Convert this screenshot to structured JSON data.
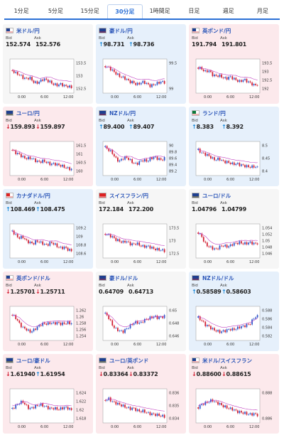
{
  "tabs": [
    {
      "label": "1分足",
      "active": false
    },
    {
      "label": "5分足",
      "active": false
    },
    {
      "label": "15分足",
      "active": false
    },
    {
      "label": "30分足",
      "active": true
    },
    {
      "label": "1時間足",
      "active": false
    },
    {
      "label": "日足",
      "active": false
    },
    {
      "label": "週足",
      "active": false
    },
    {
      "label": "月足",
      "active": false
    }
  ],
  "colors": {
    "up_bg": "#e6f0fb",
    "down_bg": "#fce9ec",
    "bull": "#2c53c9",
    "bear": "#d21c2f",
    "ma": "#c040c0"
  },
  "labels": {
    "bid": "Bid",
    "ask": "Ask"
  },
  "cards": [
    {
      "pair": "米ドル/円",
      "flag": "us",
      "trend": "flat",
      "bid": "152.574",
      "ask": "152.576",
      "y_ticks": [
        "153.5",
        "153",
        "152.5"
      ],
      "x_ticks": [
        "0:00",
        "6:00",
        "12:00"
      ],
      "shape": [
        0.3,
        0.4,
        0.45,
        0.55,
        0.6,
        0.55,
        0.7,
        0.75,
        0.68,
        0.6,
        0.65,
        0.72,
        0.8,
        0.82,
        0.78,
        0.85,
        0.86,
        0.9
      ]
    },
    {
      "pair": "豪ドル/円",
      "flag": "au",
      "trend": "up",
      "bid": "98.731",
      "ask": "98.736",
      "bid_dir": "up",
      "ask_dir": "up",
      "y_ticks": [
        "99.5",
        "99"
      ],
      "x_ticks": [
        "0:00",
        "6:00",
        "12:00"
      ],
      "shape": [
        0.15,
        0.2,
        0.3,
        0.4,
        0.5,
        0.55,
        0.6,
        0.7,
        0.72,
        0.8,
        0.75,
        0.7,
        0.78,
        0.85,
        0.8,
        0.75,
        0.7,
        0.72
      ]
    },
    {
      "pair": "英ポンド/円",
      "flag": "uk",
      "trend": "down",
      "bid": "191.794",
      "ask": "191.801",
      "y_ticks": [
        "193.5",
        "193",
        "192.5",
        "192"
      ],
      "x_ticks": [
        "0:00",
        "6:00",
        "12:00"
      ],
      "shape": [
        0.2,
        0.25,
        0.35,
        0.3,
        0.45,
        0.5,
        0.48,
        0.55,
        0.6,
        0.52,
        0.58,
        0.65,
        0.7,
        0.62,
        0.68,
        0.75,
        0.82,
        0.8
      ]
    },
    {
      "pair": "ユーロ/円",
      "flag": "eu",
      "trend": "down",
      "bid": "159.893",
      "ask": "159.897",
      "bid_dir": "down",
      "ask_dir": "down",
      "y_ticks": [
        "161.5",
        "161",
        "160.5",
        "160"
      ],
      "x_ticks": [
        "0:00",
        "6:00",
        "12:00"
      ],
      "shape": [
        0.2,
        0.3,
        0.35,
        0.45,
        0.5,
        0.48,
        0.52,
        0.6,
        0.62,
        0.58,
        0.65,
        0.7,
        0.68,
        0.72,
        0.75,
        0.8,
        0.85,
        0.88
      ]
    },
    {
      "pair": "NZドル/円",
      "flag": "nz",
      "trend": "up",
      "bid": "89.400",
      "ask": "89.407",
      "bid_dir": "up",
      "ask_dir": "up",
      "y_ticks": [
        "90",
        "89.8",
        "89.6",
        "89.4",
        "89.2"
      ],
      "x_ticks": [
        "0:00",
        "6:00",
        "12:00"
      ],
      "shape": [
        0.1,
        0.2,
        0.3,
        0.5,
        0.6,
        0.5,
        0.45,
        0.55,
        0.65,
        0.7,
        0.6,
        0.55,
        0.6,
        0.5,
        0.45,
        0.5,
        0.55,
        0.5
      ]
    },
    {
      "pair": "ランド/円",
      "flag": "za",
      "trend": "up",
      "bid": "8.383",
      "ask": "8.392",
      "bid_dir": "up",
      "ask_dir": "up",
      "y_ticks": [
        "8.5",
        "8.45",
        "8.4"
      ],
      "x_ticks": [
        "0:00",
        "6:00",
        "12:00"
      ],
      "shape": [
        0.2,
        0.3,
        0.35,
        0.4,
        0.5,
        0.55,
        0.5,
        0.6,
        0.62,
        0.65,
        0.7,
        0.68,
        0.72,
        0.75,
        0.78,
        0.8,
        0.78,
        0.82
      ]
    },
    {
      "pair": "カナダドル/円",
      "flag": "ca",
      "trend": "up",
      "bid": "108.469",
      "ask": "108.475",
      "bid_dir": "up",
      "ask_dir": "up",
      "y_ticks": [
        "109.2",
        "109",
        "108.8",
        "108.6"
      ],
      "x_ticks": [
        "0:00",
        "6:00",
        "12:00"
      ],
      "shape": [
        0.15,
        0.3,
        0.4,
        0.35,
        0.5,
        0.55,
        0.6,
        0.5,
        0.55,
        0.6,
        0.65,
        0.55,
        0.6,
        0.7,
        0.75,
        0.72,
        0.8,
        0.85
      ]
    },
    {
      "pair": "スイスフラン/円",
      "flag": "ch",
      "trend": "flat",
      "bid": "172.184",
      "ask": "172.200",
      "y_ticks": [
        "173.5",
        "173",
        "172.5"
      ],
      "x_ticks": [
        "0:00",
        "6:00",
        "12:00"
      ],
      "shape": [
        0.25,
        0.3,
        0.35,
        0.45,
        0.5,
        0.55,
        0.5,
        0.6,
        0.62,
        0.58,
        0.66,
        0.7,
        0.68,
        0.72,
        0.78,
        0.8,
        0.82,
        0.85
      ]
    },
    {
      "pair": "ユーロ/ドル",
      "flag": "eu",
      "trend": "flat",
      "bid": "1.04796",
      "ask": "1.04799",
      "y_ticks": [
        "1.054",
        "1.052",
        "1.05",
        "1.048",
        "1.046"
      ],
      "x_ticks": [
        "0:00",
        "6:00",
        "12:00"
      ],
      "shape": [
        0.2,
        0.35,
        0.6,
        0.7,
        0.75,
        0.8,
        0.72,
        0.65,
        0.7,
        0.68,
        0.6,
        0.58,
        0.55,
        0.6,
        0.58,
        0.55,
        0.6,
        0.58
      ]
    },
    {
      "pair": "英ポンド/ドル",
      "flag": "uk",
      "trend": "down",
      "bid": "1.25701",
      "ask": "1.25711",
      "bid_dir": "down",
      "ask_dir": "down",
      "y_ticks": [
        "1.262",
        "1.26",
        "1.258",
        "1.256",
        "1.254"
      ],
      "x_ticks": [
        "0:00",
        "6:00",
        "12:00"
      ],
      "shape": [
        0.2,
        0.3,
        0.5,
        0.65,
        0.7,
        0.8,
        0.75,
        0.65,
        0.55,
        0.5,
        0.52,
        0.48,
        0.5,
        0.47,
        0.52,
        0.5,
        0.48,
        0.5
      ]
    },
    {
      "pair": "豪ドル/ドル",
      "flag": "au",
      "trend": "flat",
      "bid": "0.64709",
      "ask": "0.64713",
      "y_ticks": [
        "0.65",
        "0.648",
        "0.646"
      ],
      "x_ticks": [
        "0:00",
        "6:00",
        "12:00"
      ],
      "shape": [
        0.15,
        0.3,
        0.55,
        0.7,
        0.75,
        0.8,
        0.7,
        0.6,
        0.5,
        0.45,
        0.5,
        0.4,
        0.35,
        0.3,
        0.25,
        0.3,
        0.28,
        0.25
      ]
    },
    {
      "pair": "NZドル/ドル",
      "flag": "nz",
      "trend": "up",
      "bid": "0.58589",
      "ask": "0.58603",
      "bid_dir": "up",
      "ask_dir": "up",
      "y_ticks": [
        "0.588",
        "0.586",
        "0.584",
        "0.582"
      ],
      "x_ticks": [
        "0:00",
        "6:00",
        "12:00"
      ],
      "shape": [
        0.3,
        0.4,
        0.55,
        0.6,
        0.7,
        0.75,
        0.8,
        0.78,
        0.75,
        0.7,
        0.72,
        0.68,
        0.62,
        0.6,
        0.55,
        0.5,
        0.3,
        0.25
      ]
    },
    {
      "pair": "ユーロ/豪ドル",
      "flag": "eu",
      "trend": "down",
      "bid": "1.61940",
      "ask": "1.61954",
      "bid_dir": "down",
      "ask_dir": "up",
      "y_ticks": [
        "1.624",
        "1.622",
        "1.62",
        "1.618"
      ],
      "x_ticks": [
        "0:00",
        "6:00",
        "12:00"
      ],
      "shape": [
        0.6,
        0.5,
        0.4,
        0.35,
        0.5,
        0.6,
        0.55,
        0.5,
        0.45,
        0.5,
        0.55,
        0.6,
        0.58,
        0.62,
        0.6,
        0.55,
        0.58,
        0.65
      ]
    },
    {
      "pair": "ユーロ/英ポンド",
      "flag": "eu",
      "trend": "down",
      "bid": "0.83364",
      "ask": "0.83372",
      "bid_dir": "down",
      "ask_dir": "down",
      "y_ticks": [
        "0.836",
        "0.835",
        "0.834"
      ],
      "x_ticks": [
        "0:00",
        "6:00",
        "12:00"
      ],
      "shape": [
        0.3,
        0.25,
        0.35,
        0.4,
        0.45,
        0.5,
        0.55,
        0.6,
        0.58,
        0.65,
        0.7,
        0.68,
        0.75,
        0.78,
        0.8,
        0.82,
        0.85,
        0.88
      ]
    },
    {
      "pair": "米ドル/スイスフラン",
      "flag": "us",
      "trend": "down",
      "bid": "0.88600",
      "ask": "0.88615",
      "bid_dir": "down",
      "ask_dir": "down",
      "y_ticks": [
        "0.888",
        "0.886"
      ],
      "x_ticks": [
        "0:00",
        "6:00",
        "12:00"
      ],
      "shape": [
        0.55,
        0.45,
        0.4,
        0.35,
        0.3,
        0.38,
        0.42,
        0.5,
        0.55,
        0.6,
        0.62,
        0.7,
        0.72,
        0.75,
        0.78,
        0.8,
        0.78,
        0.82
      ]
    }
  ]
}
